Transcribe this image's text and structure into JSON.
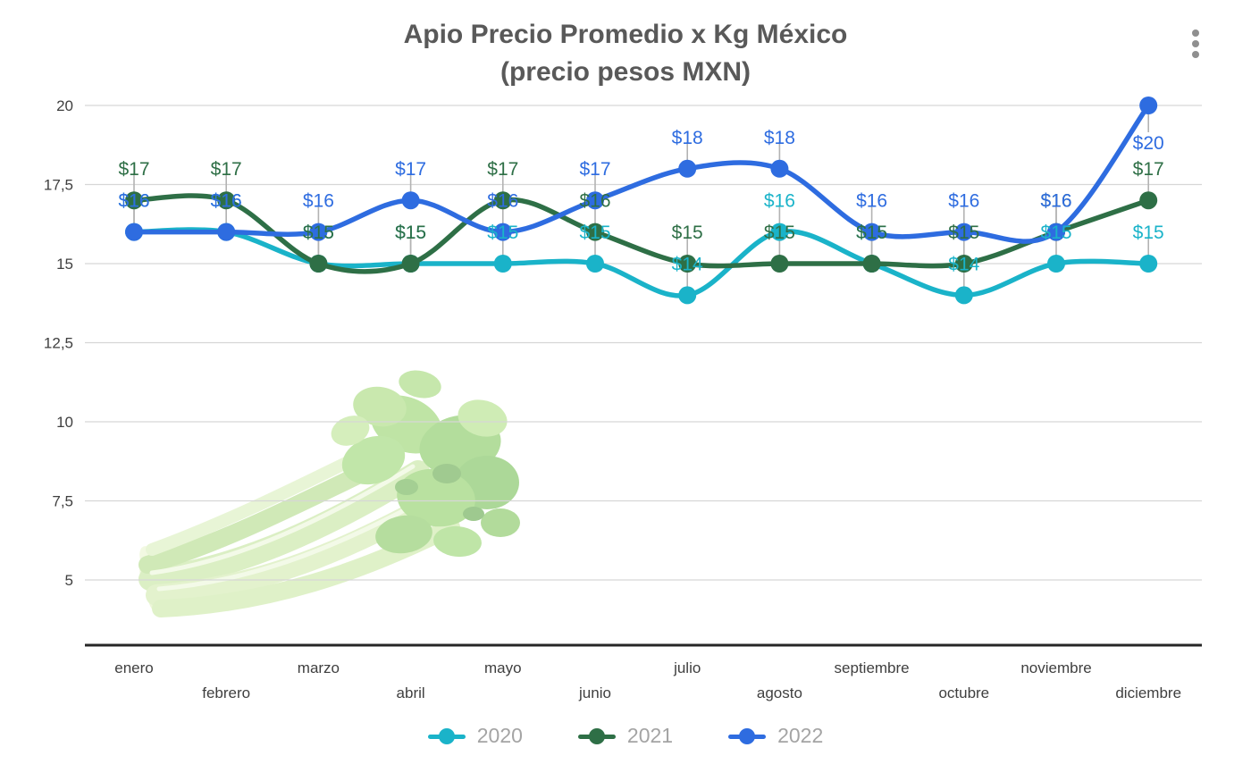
{
  "title": {
    "line1": "Apio Precio Promedio x Kg México",
    "line2": "(precio pesos MXN)"
  },
  "menu": {
    "more_options_icon": "kebab-vertical-three-dots"
  },
  "chart_data": {
    "type": "line",
    "smoothed": true,
    "title": "Apio Precio Promedio x Kg México (precio pesos MXN)",
    "currency_prefix": "$",
    "categories": [
      "enero",
      "febrero",
      "marzo",
      "abril",
      "mayo",
      "junio",
      "julio",
      "agosto",
      "septiembre",
      "octubre",
      "noviembre",
      "diciembre"
    ],
    "series": [
      {
        "name": "2020",
        "color": "#1ab3c9",
        "values": [
          16,
          16,
          15,
          15,
          15,
          15,
          14,
          16,
          15,
          14,
          15,
          15
        ],
        "data_labels": [
          "$16",
          "$16",
          "$15",
          "$15",
          "$15",
          "$15",
          "$14",
          "$16",
          "$15",
          "$14",
          "$15",
          "$15"
        ]
      },
      {
        "name": "2021",
        "color": "#2e6f46",
        "values": [
          17,
          17,
          15,
          15,
          17,
          16,
          15,
          15,
          15,
          15,
          16,
          17
        ],
        "data_labels": [
          "$17",
          "$17",
          "$15",
          "$15",
          "$17",
          "$16",
          "$15",
          "$15",
          "$15",
          "$15",
          "$16",
          "$17"
        ]
      },
      {
        "name": "2022",
        "color": "#2e6ce0",
        "values": [
          16,
          16,
          16,
          17,
          16,
          17,
          18,
          18,
          16,
          16,
          16,
          20
        ],
        "data_labels": [
          "$16",
          "$16",
          "$16",
          "$17",
          "$16",
          "$17",
          "$18",
          "$18",
          "$16",
          "$16",
          "$16",
          "$20"
        ]
      }
    ],
    "y_axis": {
      "ticks": [
        {
          "v": 20,
          "label": "20"
        },
        {
          "v": 17.5,
          "label": "17,5"
        },
        {
          "v": 15,
          "label": "15"
        },
        {
          "v": 12.5,
          "label": "12,5"
        },
        {
          "v": 10,
          "label": "10"
        },
        {
          "v": 7.5,
          "label": "7,5"
        },
        {
          "v": 5,
          "label": "5"
        }
      ],
      "ylim": [
        5,
        20
      ],
      "grid": true
    },
    "legend_position": "bottom",
    "styles": {
      "gridline_color": "#d6d6d6",
      "axis_line_color": "#262626",
      "leader_line_color": "#b3b3b3",
      "tick_label_color": "#3f3f3f",
      "title_color": "#595959",
      "legend_text_color": "#a4a4a4"
    }
  }
}
